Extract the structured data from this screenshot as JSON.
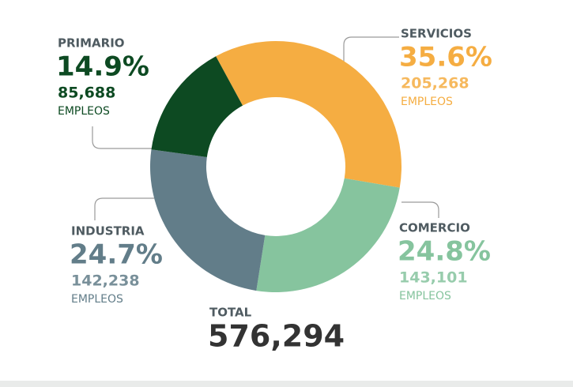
{
  "chart_data": {
    "type": "donut",
    "categories": [
      "SERVICIOS",
      "COMERCIO",
      "INDUSTRIA",
      "PRIMARIO"
    ],
    "values": [
      35.6,
      24.8,
      24.7,
      14.9
    ],
    "value_labels": [
      "35.6%",
      "24.8%",
      "24.7%",
      "14.9%"
    ],
    "colors": [
      "#f5ad42",
      "#86c49e",
      "#627d89",
      "#0d4a22"
    ],
    "counts": [
      205268,
      143101,
      142238,
      85688
    ],
    "count_labels": [
      "205,268",
      "143,101",
      "142,238",
      "85,688"
    ],
    "unit": "EMPLEOS",
    "total_title": "TOTAL",
    "total": {
      "value": 576294,
      "label": "576,294"
    }
  }
}
